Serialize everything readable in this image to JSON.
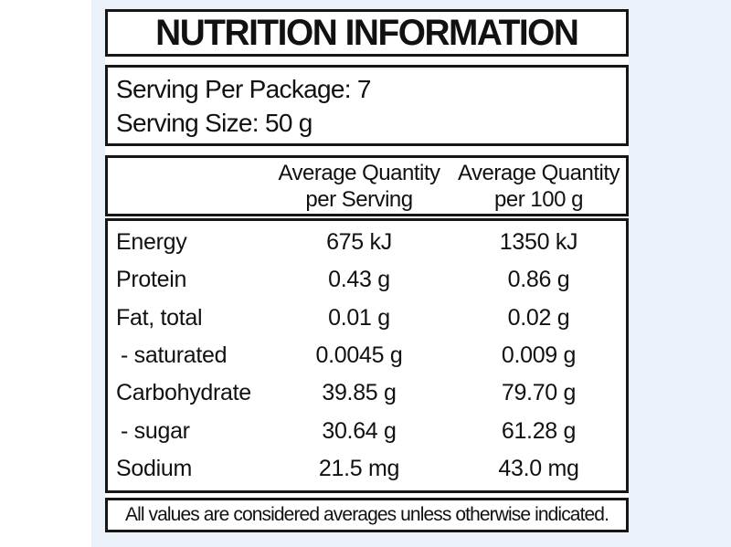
{
  "page": {
    "background_color": "#ffffff",
    "panel_color": "#ebf1f8",
    "border_color": "#161616"
  },
  "label": {
    "title": "NUTRITION INFORMATION",
    "serving": [
      "Serving Per Package: 7",
      "Serving Size: 50 g"
    ],
    "columns": {
      "serving": [
        "Average Quantity",
        "per Serving"
      ],
      "per100": [
        "Average Quantity",
        "per 100 g"
      ]
    },
    "rows": [
      {
        "name": "Energy",
        "per_serving": "675 kJ",
        "per_100g": "1350 kJ"
      },
      {
        "name": "Protein",
        "per_serving": "0.43 g",
        "per_100g": "0.86 g"
      },
      {
        "name": "Fat, total",
        "per_serving": "0.01 g",
        "per_100g": "0.02 g"
      },
      {
        "name": "- saturated",
        "per_serving": "0.0045 g",
        "per_100g": "0.009 g"
      },
      {
        "name": "Carbohydrate",
        "per_serving": "39.85 g",
        "per_100g": "79.70 g"
      },
      {
        "name": "- sugar",
        "per_serving": "30.64 g",
        "per_100g": "61.28 g"
      },
      {
        "name": "Sodium",
        "per_serving": "21.5 mg",
        "per_100g": "43.0 mg"
      }
    ],
    "footnote": "All values are considered averages unless otherwise indicated."
  }
}
